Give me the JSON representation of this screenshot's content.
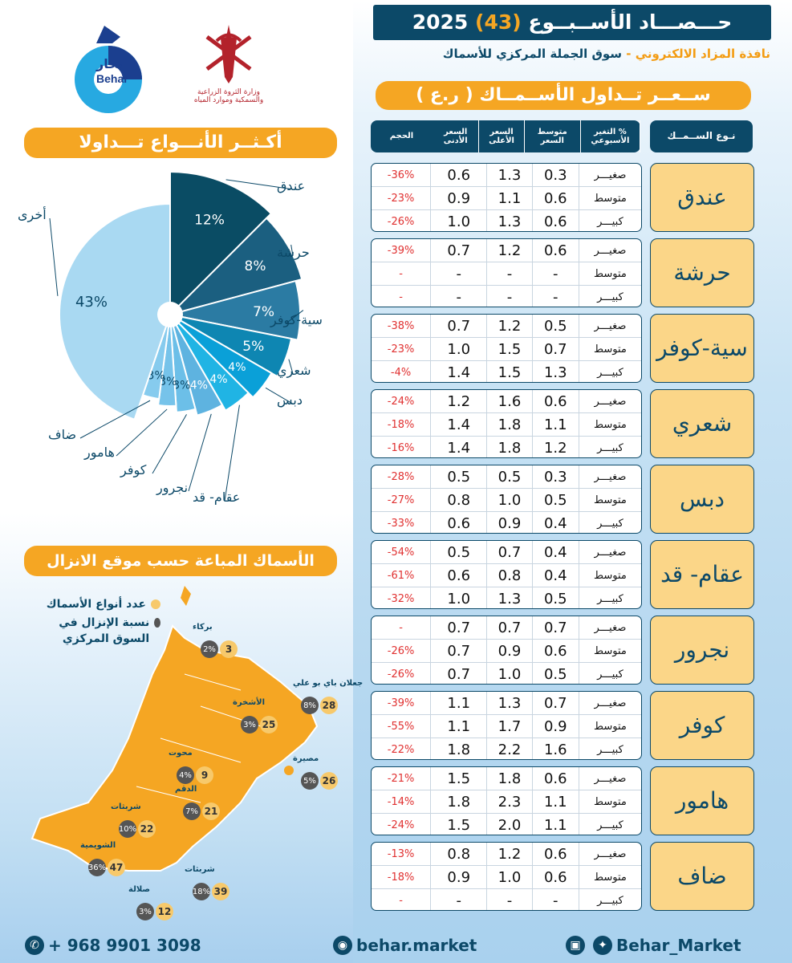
{
  "header": {
    "title_prefix": "حـــصـــاد الأســبــوع",
    "week": "(43)",
    "year": "2025",
    "subtitle_main": "سوق الجملة المركزي للأسماك",
    "subtitle_sep": " - ",
    "subtitle_accent": "نافذة المزاد الالكتروني"
  },
  "logos": {
    "behar_ar": "بحار",
    "behar_en": "Behar",
    "ministry_line1": "وزارة الثروة الزراعية",
    "ministry_line2": "والسمكية وموارد المياه"
  },
  "price_table": {
    "banner": "ســعــر تــداول الأســمــاك ( ر.ع )",
    "headers": {
      "type": "نـوع الســمــك",
      "size": "الحجم",
      "low": "السعر الأدنى",
      "high": "السعر الأعلى",
      "avg": "متوسط السعر",
      "change": "% التغير الأسبوعي"
    },
    "fish": [
      {
        "name": "عندق",
        "rows": [
          {
            "size": "صغيـــر",
            "low": "0.3",
            "high": "1.3",
            "avg": "0.6",
            "change": "-36%"
          },
          {
            "size": "متوسط",
            "low": "0.6",
            "high": "1.1",
            "avg": "0.9",
            "change": "-23%"
          },
          {
            "size": "كبيـــر",
            "low": "0.6",
            "high": "1.3",
            "avg": "1.0",
            "change": "-26%"
          }
        ]
      },
      {
        "name": "حرشة",
        "rows": [
          {
            "size": "صغيـــر",
            "low": "0.6",
            "high": "1.2",
            "avg": "0.7",
            "change": "-39%"
          },
          {
            "size": "متوسط",
            "low": "-",
            "high": "-",
            "avg": "-",
            "change": "-"
          },
          {
            "size": "كبيـــر",
            "low": "-",
            "high": "-",
            "avg": "-",
            "change": "-"
          }
        ]
      },
      {
        "name": "سية-كوفر",
        "rows": [
          {
            "size": "صغيـــر",
            "low": "0.5",
            "high": "1.2",
            "avg": "0.7",
            "change": "-38%"
          },
          {
            "size": "متوسط",
            "low": "0.7",
            "high": "1.5",
            "avg": "1.0",
            "change": "-23%"
          },
          {
            "size": "كبيـــر",
            "low": "1.3",
            "high": "1.5",
            "avg": "1.4",
            "change": "-4%"
          }
        ]
      },
      {
        "name": "شعري",
        "rows": [
          {
            "size": "صغيـــر",
            "low": "0.6",
            "high": "1.6",
            "avg": "1.2",
            "change": "-24%"
          },
          {
            "size": "متوسط",
            "low": "1.1",
            "high": "1.8",
            "avg": "1.4",
            "change": "-18%"
          },
          {
            "size": "كبيـــر",
            "low": "1.2",
            "high": "1.8",
            "avg": "1.4",
            "change": "-16%"
          }
        ]
      },
      {
        "name": "دبس",
        "rows": [
          {
            "size": "صغيـــر",
            "low": "0.3",
            "high": "0.5",
            "avg": "0.5",
            "change": "-28%"
          },
          {
            "size": "متوسط",
            "low": "0.5",
            "high": "1.0",
            "avg": "0.8",
            "change": "-27%"
          },
          {
            "size": "كبيـــر",
            "low": "0.4",
            "high": "0.9",
            "avg": "0.6",
            "change": "-33%"
          }
        ]
      },
      {
        "name": "عقام- قد",
        "rows": [
          {
            "size": "صغيـــر",
            "low": "0.4",
            "high": "0.7",
            "avg": "0.5",
            "change": "-54%"
          },
          {
            "size": "متوسط",
            "low": "0.4",
            "high": "0.8",
            "avg": "0.6",
            "change": "-61%"
          },
          {
            "size": "كبيـــر",
            "low": "0.5",
            "high": "1.3",
            "avg": "1.0",
            "change": "-32%"
          }
        ]
      },
      {
        "name": "نجرور",
        "rows": [
          {
            "size": "صغيـــر",
            "low": "0.7",
            "high": "0.7",
            "avg": "0.7",
            "change": "-"
          },
          {
            "size": "متوسط",
            "low": "0.6",
            "high": "0.9",
            "avg": "0.7",
            "change": "-26%"
          },
          {
            "size": "كبيـــر",
            "low": "0.5",
            "high": "1.0",
            "avg": "0.7",
            "change": "-26%"
          }
        ]
      },
      {
        "name": "كوفر",
        "rows": [
          {
            "size": "صغيـــر",
            "low": "0.7",
            "high": "1.3",
            "avg": "1.1",
            "change": "-39%"
          },
          {
            "size": "متوسط",
            "low": "0.9",
            "high": "1.7",
            "avg": "1.1",
            "change": "-55%"
          },
          {
            "size": "كبيـــر",
            "low": "1.6",
            "high": "2.2",
            "avg": "1.8",
            "change": "-22%"
          }
        ]
      },
      {
        "name": "هامور",
        "rows": [
          {
            "size": "صغيـــر",
            "low": "0.6",
            "high": "1.8",
            "avg": "1.5",
            "change": "-21%"
          },
          {
            "size": "متوسط",
            "low": "1.1",
            "high": "2.3",
            "avg": "1.8",
            "change": "-14%"
          },
          {
            "size": "كبيـــر",
            "low": "1.1",
            "high": "2.0",
            "avg": "1.5",
            "change": "-24%"
          }
        ]
      },
      {
        "name": "ضاف",
        "rows": [
          {
            "size": "صغيـــر",
            "low": "0.6",
            "high": "1.2",
            "avg": "0.8",
            "change": "-13%"
          },
          {
            "size": "متوسط",
            "low": "0.6",
            "high": "1.0",
            "avg": "0.9",
            "change": "-18%"
          },
          {
            "size": "كبيـــر",
            "low": "-",
            "high": "-",
            "avg": "-",
            "change": "-"
          }
        ]
      }
    ]
  },
  "chart_data": {
    "type": "pie",
    "title": "أكـثــر الأنـــواع تـــداولا",
    "categories": [
      "عندق",
      "حرشة",
      "سية-كوفر",
      "شعري",
      "دبس",
      "عقام- قد",
      "نجرور",
      "كوفر",
      "هامور",
      "ضاف",
      "أخرى"
    ],
    "values": [
      12,
      8,
      7,
      5,
      4,
      4,
      4,
      3,
      3,
      3,
      43
    ],
    "value_labels": [
      "12%",
      "8%",
      "7%",
      "5%",
      "4%",
      "4%",
      "4%",
      "3%",
      "3%",
      "3%",
      "43%"
    ],
    "colors": [
      "#0a4c64",
      "#1b5f80",
      "#2b7ba3",
      "#0e86b2",
      "#0aa0d8",
      "#20b4e4",
      "#5eb3e0",
      "#6cbfe8",
      "#76c3ea",
      "#86cbee",
      "#a9d9f2"
    ]
  },
  "map": {
    "banner": "الأسماك المباعة حسب موقع الانزال",
    "legend_count": "عدد أنواع الأسماك",
    "legend_share": "نسبة الإنزال في السوق المركزي",
    "sites": [
      {
        "name": "بركاء",
        "count": "3",
        "share": "2%"
      },
      {
        "name": "جعلان باي بو علي",
        "count": "28",
        "share": "8%"
      },
      {
        "name": "الأشخرة",
        "count": "25",
        "share": "3%"
      },
      {
        "name": "محوت",
        "count": "9",
        "share": "4%"
      },
      {
        "name": "مصيرة",
        "count": "26",
        "share": "5%"
      },
      {
        "name": "الدقم",
        "count": "21",
        "share": "7%"
      },
      {
        "name": "شربثات",
        "count": "22",
        "share": "10%"
      },
      {
        "name": "الشويمية",
        "count": "47",
        "share": "36%"
      },
      {
        "name": "شربثات",
        "count": "39",
        "share": "18%"
      },
      {
        "name": "صلالة",
        "count": "12",
        "share": "3%"
      }
    ]
  },
  "footer": {
    "phone": "+ 968 9901 3098",
    "website": "behar.market",
    "social": "Behar_Market"
  },
  "colors": {
    "navy": "#0c4968",
    "orange": "#f5a623",
    "red": "#e03030"
  }
}
